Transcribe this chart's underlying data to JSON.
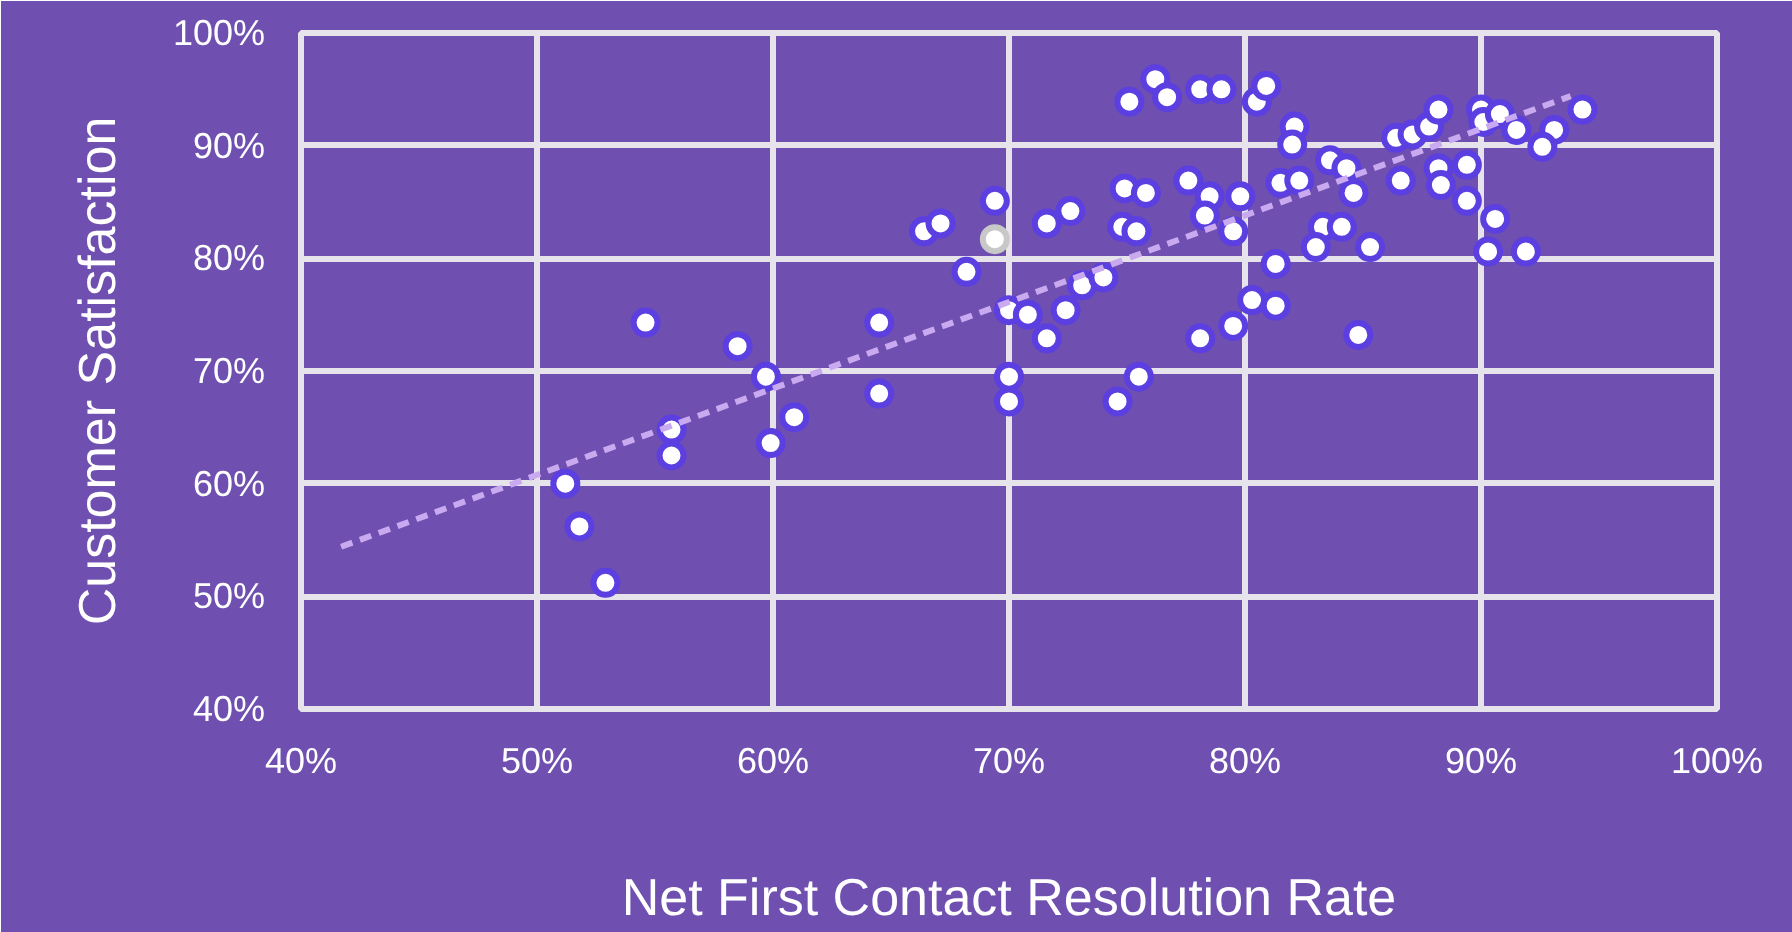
{
  "chart_data": {
    "type": "scatter",
    "xlabel": "Net First Contact Resolution Rate",
    "ylabel": "Customer Satisfaction",
    "xlim": [
      40,
      100
    ],
    "ylim": [
      40,
      100
    ],
    "xticks": [
      {
        "value": 40,
        "label": "40%"
      },
      {
        "value": 50,
        "label": "50%"
      },
      {
        "value": 60,
        "label": "60%"
      },
      {
        "value": 70,
        "label": "70%"
      },
      {
        "value": 80,
        "label": "80%"
      },
      {
        "value": 90,
        "label": "90%"
      },
      {
        "value": 100,
        "label": "100%"
      }
    ],
    "yticks": [
      {
        "value": 40,
        "label": "40%"
      },
      {
        "value": 50,
        "label": "50%"
      },
      {
        "value": 60,
        "label": "60%"
      },
      {
        "value": 70,
        "label": "70%"
      },
      {
        "value": 80,
        "label": "80%"
      },
      {
        "value": 90,
        "label": "90%"
      },
      {
        "value": 100,
        "label": "100%"
      }
    ],
    "grid": true,
    "series": [
      {
        "color": "#5b3fe0",
        "marker": "circle",
        "x": [
          51.2,
          51.8,
          52.9,
          54.6,
          55.7,
          55.7,
          58.5,
          59.7,
          59.9,
          60.9,
          64.5,
          64.5,
          66.4,
          67.1,
          69.4,
          68.2,
          70.0,
          70.8,
          72.4,
          71.6,
          73.1,
          74.0,
          70.0,
          70.0,
          74.6,
          75.5,
          71.6,
          72.6,
          74.8,
          75.4,
          74.9,
          75.8,
          75.1,
          76.2,
          76.7,
          78.1,
          79.0,
          77.6,
          78.5,
          78.3,
          79.5,
          79.8,
          78.1,
          79.5,
          80.3,
          81.3,
          81.3,
          80.5,
          80.9,
          82.1,
          82.0,
          81.5,
          82.3,
          83.6,
          84.3,
          83.3,
          84.1,
          83.0,
          85.3,
          84.8,
          84.6,
          86.4,
          87.1,
          87.8,
          88.2,
          86.6,
          88.2,
          88.3,
          89.4,
          89.4,
          90.0,
          90.1,
          90.8,
          91.5,
          93.1,
          92.6,
          94.3,
          90.6,
          90.3,
          91.9
        ],
        "values": [
          60.0,
          56.2,
          51.2,
          74.3,
          64.8,
          62.5,
          72.2,
          69.5,
          63.6,
          65.9,
          74.3,
          68.0,
          82.4,
          83.1,
          85.1,
          78.8,
          75.4,
          75.0,
          75.4,
          72.9,
          77.6,
          78.3,
          69.5,
          67.3,
          67.3,
          69.5,
          83.1,
          84.2,
          82.8,
          82.4,
          86.2,
          85.8,
          93.9,
          95.9,
          94.3,
          95.0,
          95.0,
          86.9,
          85.5,
          83.8,
          82.4,
          85.5,
          72.9,
          74.0,
          76.3,
          75.8,
          79.5,
          93.9,
          95.3,
          91.7,
          90.1,
          86.7,
          86.9,
          88.7,
          88.0,
          82.8,
          82.8,
          81.0,
          81.0,
          73.2,
          85.8,
          90.7,
          91.0,
          91.7,
          93.2,
          86.9,
          88.0,
          86.5,
          88.3,
          85.1,
          93.2,
          92.1,
          92.8,
          91.4,
          91.4,
          89.9,
          93.2,
          83.5,
          80.6,
          80.6
        ]
      },
      {
        "color": "#c8c8c8",
        "marker": "circle",
        "x": [
          69.4
        ],
        "values": [
          81.7
        ]
      },
      {
        "type": "line",
        "line_style": "dashed",
        "marker": "none",
        "color": "#c9aaf0",
        "x": [
          41.7,
          93.8
        ],
        "values": [
          54.4,
          94.4
        ]
      }
    ]
  }
}
